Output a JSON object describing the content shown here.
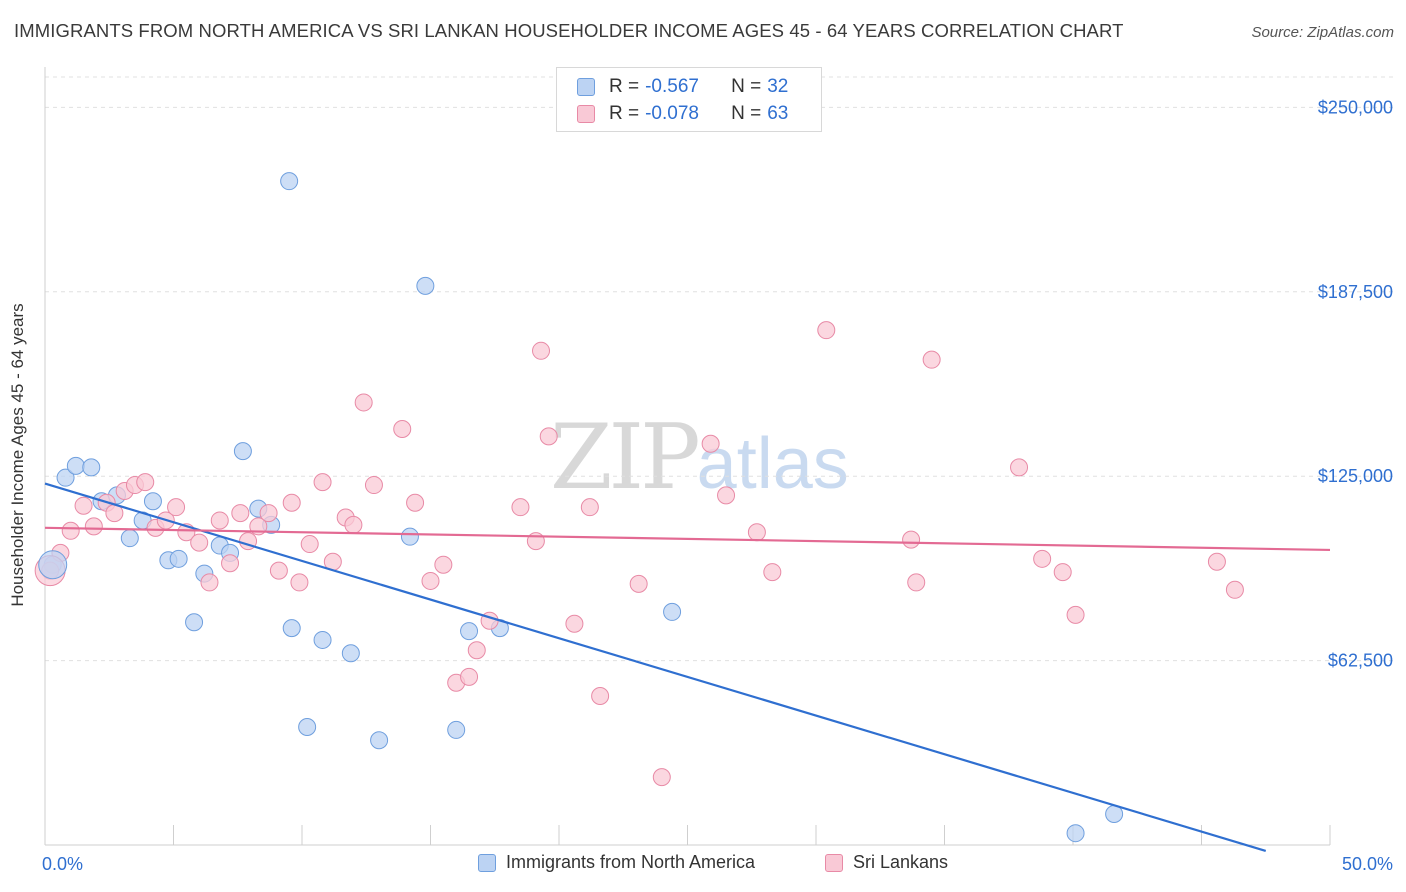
{
  "title": "IMMIGRANTS FROM NORTH AMERICA VS SRI LANKAN HOUSEHOLDER INCOME AGES 45 - 64 YEARS CORRELATION CHART",
  "source": "Source: ZipAtlas.com",
  "watermark": {
    "part1": "ZIP",
    "part2": "atlas"
  },
  "legend": {
    "rows": [
      {
        "r_label": "R =",
        "r_value": "-0.567",
        "n_label": "N =",
        "n_value": "32"
      },
      {
        "r_label": "R =",
        "r_value": "-0.078",
        "n_label": "N =",
        "n_value": "63"
      }
    ]
  },
  "chart_data": {
    "type": "scatter",
    "title": "IMMIGRANTS FROM NORTH AMERICA VS SRI LANKAN HOUSEHOLDER INCOME AGES 45 - 64 YEARS CORRELATION CHART",
    "xlabel": "",
    "ylabel": "Householder Income Ages 45 - 64 years",
    "xlim": [
      0,
      50
    ],
    "ylim": [
      0,
      262000
    ],
    "x_tick_labels": [
      {
        "value": 0,
        "label": "0.0%"
      },
      {
        "value": 50,
        "label": "50.0%"
      }
    ],
    "y_tick_labels": [
      {
        "value": 62500,
        "label": "$62,500"
      },
      {
        "value": 125000,
        "label": "$125,000"
      },
      {
        "value": 187500,
        "label": "$187,500"
      },
      {
        "value": 250000,
        "label": "$250,000"
      }
    ],
    "grid": true,
    "legend_position": "top-center",
    "series": [
      {
        "name": "Immigrants from North America",
        "color": "#6f9fde",
        "fill": "#bcd3f3",
        "r": -0.567,
        "n": 32,
        "trend": {
          "x": [
            0,
            47.5
          ],
          "y": [
            122500,
            -2000
          ]
        },
        "points": [
          [
            0.3,
            95000
          ],
          [
            0.8,
            124500
          ],
          [
            1.2,
            128500
          ],
          [
            1.8,
            128000
          ],
          [
            2.2,
            116500
          ],
          [
            2.8,
            118500
          ],
          [
            3.3,
            104000
          ],
          [
            3.8,
            110000
          ],
          [
            4.2,
            116500
          ],
          [
            4.8,
            96500
          ],
          [
            5.2,
            97000
          ],
          [
            5.8,
            75500
          ],
          [
            6.2,
            92000
          ],
          [
            6.8,
            101500
          ],
          [
            7.2,
            99000
          ],
          [
            7.7,
            133500
          ],
          [
            8.3,
            114000
          ],
          [
            8.8,
            108500
          ],
          [
            9.5,
            225000
          ],
          [
            9.6,
            73500
          ],
          [
            10.2,
            40000
          ],
          [
            10.8,
            69500
          ],
          [
            11.9,
            65000
          ],
          [
            13.0,
            35500
          ],
          [
            14.2,
            104500
          ],
          [
            14.8,
            189500
          ],
          [
            16.0,
            39000
          ],
          [
            16.5,
            72500
          ],
          [
            17.7,
            73500
          ],
          [
            24.4,
            79000
          ],
          [
            40.1,
            4000
          ],
          [
            41.6,
            10500
          ]
        ]
      },
      {
        "name": "Sri Lankans",
        "color": "#e88aa6",
        "fill": "#f9c9d6",
        "r": -0.078,
        "n": 63,
        "trend": {
          "x": [
            0,
            50
          ],
          "y": [
            107500,
            100000
          ]
        },
        "points": [
          [
            0.2,
            93000
          ],
          [
            0.6,
            99000
          ],
          [
            1.0,
            106500
          ],
          [
            1.5,
            115000
          ],
          [
            1.9,
            108000
          ],
          [
            2.4,
            116000
          ],
          [
            2.7,
            112500
          ],
          [
            3.1,
            120000
          ],
          [
            3.5,
            122000
          ],
          [
            3.9,
            123000
          ],
          [
            4.3,
            107500
          ],
          [
            4.7,
            110000
          ],
          [
            5.1,
            114500
          ],
          [
            5.5,
            106000
          ],
          [
            6.0,
            102500
          ],
          [
            6.4,
            89000
          ],
          [
            6.8,
            110000
          ],
          [
            7.2,
            95500
          ],
          [
            7.6,
            112500
          ],
          [
            7.9,
            103000
          ],
          [
            8.3,
            108000
          ],
          [
            8.7,
            112500
          ],
          [
            9.1,
            93000
          ],
          [
            9.6,
            116000
          ],
          [
            9.9,
            89000
          ],
          [
            10.3,
            102000
          ],
          [
            10.8,
            123000
          ],
          [
            11.2,
            96000
          ],
          [
            11.7,
            111000
          ],
          [
            12.0,
            108500
          ],
          [
            12.4,
            150000
          ],
          [
            12.8,
            122000
          ],
          [
            13.9,
            141000
          ],
          [
            14.4,
            116000
          ],
          [
            15.0,
            89500
          ],
          [
            15.5,
            95000
          ],
          [
            16.0,
            55000
          ],
          [
            16.5,
            57000
          ],
          [
            16.8,
            66000
          ],
          [
            17.3,
            76000
          ],
          [
            18.5,
            114500
          ],
          [
            19.1,
            103000
          ],
          [
            19.3,
            167500
          ],
          [
            19.6,
            138500
          ],
          [
            20.6,
            75000
          ],
          [
            21.2,
            114500
          ],
          [
            21.6,
            50500
          ],
          [
            23.1,
            88500
          ],
          [
            24.0,
            23000
          ],
          [
            25.9,
            136000
          ],
          [
            26.5,
            118500
          ],
          [
            27.7,
            106000
          ],
          [
            28.3,
            92500
          ],
          [
            30.4,
            174500
          ],
          [
            33.7,
            103500
          ],
          [
            33.9,
            89000
          ],
          [
            34.5,
            164500
          ],
          [
            37.9,
            128000
          ],
          [
            38.8,
            97000
          ],
          [
            39.6,
            92500
          ],
          [
            40.1,
            78000
          ],
          [
            45.6,
            96000
          ],
          [
            46.3,
            86500
          ]
        ]
      }
    ]
  },
  "axis_labels": {
    "y_title": "Householder Income Ages 45 - 64 years"
  }
}
